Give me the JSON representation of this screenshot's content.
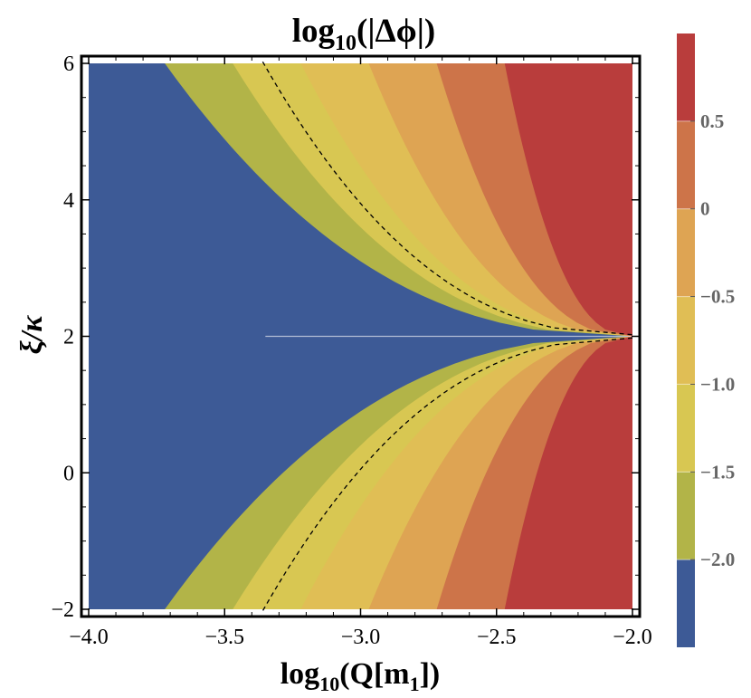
{
  "chart_data": {
    "type": "heatmap",
    "title": {
      "base": "log",
      "sub": "10",
      "rest": "(|Δϕ|)"
    },
    "xlabel": {
      "base": "log",
      "sub": "10",
      "rest": "(Q[m",
      "sub2": "1",
      "end": "])"
    },
    "ylabel": "ξ/κ",
    "xlim": [
      -4.0,
      -2.0
    ],
    "ylim": [
      -2,
      6
    ],
    "xticks": [
      {
        "value": -4.0,
        "label": "−4.0"
      },
      {
        "value": -3.5,
        "label": "−3.5"
      },
      {
        "value": -3.0,
        "label": "−3.0"
      },
      {
        "value": -2.5,
        "label": "−2.5"
      },
      {
        "value": -2.0,
        "label": "−2.0"
      }
    ],
    "yticks": [
      {
        "value": -2,
        "label": "−2"
      },
      {
        "value": 0,
        "label": "0"
      },
      {
        "value": 2,
        "label": "2"
      },
      {
        "value": 4,
        "label": "4"
      },
      {
        "value": 6,
        "label": "6"
      }
    ],
    "colorbar": {
      "range": [
        -2.5,
        1.0
      ],
      "levels": [
        {
          "from": -2.5,
          "to": -2.0,
          "color": "#3d5a96"
        },
        {
          "from": -2.0,
          "to": -1.5,
          "color": "#b2b448"
        },
        {
          "from": -1.5,
          "to": -1.0,
          "color": "#d8c752"
        },
        {
          "from": -1.0,
          "to": -0.5,
          "color": "#e0be55"
        },
        {
          "from": -0.5,
          "to": 0.0,
          "color": "#dea453"
        },
        {
          "from": 0.0,
          "to": 0.5,
          "color": "#cd7449"
        },
        {
          "from": 0.5,
          "to": 1.0,
          "color": "#b93d3c"
        }
      ],
      "tick_labels": [
        {
          "value": 0.5,
          "label": "0.5"
        },
        {
          "value": 0.0,
          "label": "0"
        },
        {
          "value": -0.5,
          "label": "−0.5"
        },
        {
          "value": -1.0,
          "label": "−1.0"
        },
        {
          "value": -1.5,
          "label": "−1.5"
        },
        {
          "value": -2.0,
          "label": "−2.0"
        }
      ]
    },
    "contour_boundaries": [
      {
        "level": -2.0,
        "x_at_edges": -3.72,
        "x_at_center": -2.0
      },
      {
        "level": -1.5,
        "x_at_edges": -3.47,
        "x_at_center": -2.0
      },
      {
        "level": -1.0,
        "x_at_edges": -3.22,
        "x_at_center": -2.0
      },
      {
        "level": -0.5,
        "x_at_edges": -2.97,
        "x_at_center": -2.0
      },
      {
        "level": 0.0,
        "x_at_edges": -2.72,
        "x_at_center": -2.0
      },
      {
        "level": 0.5,
        "x_at_edges": -2.47,
        "x_at_center": -2.0
      }
    ],
    "dashed_curve": {
      "x_at_edges": -3.36,
      "x_at_center": -2.0
    },
    "singular_line_y": 2
  }
}
